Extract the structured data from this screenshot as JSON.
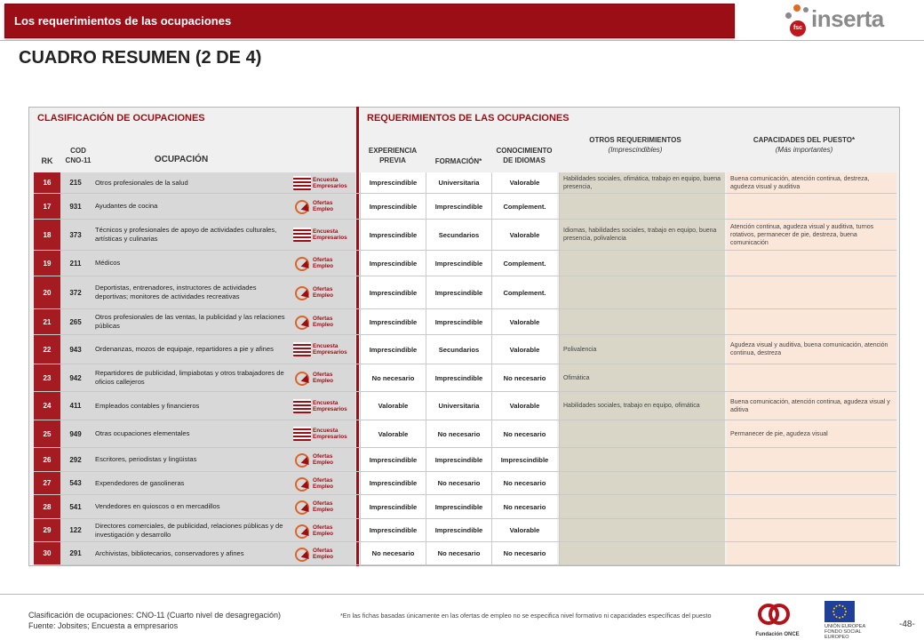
{
  "header": {
    "banner_title": "Los requerimientos de las ocupaciones",
    "logo_text": "inserta",
    "logo_badge": "fsc",
    "accent_color": "#9b0e15"
  },
  "page_title": "CUADRO RESUMEN (2 DE 4)",
  "sections": {
    "left": "CLASIFICACIÓN DE OCUPACIONES",
    "right": "REQUERIMIENTOS DE LAS OCUPACIONES"
  },
  "columns": {
    "rk": "RK",
    "cod": "COD CNO-11",
    "ocupacion": "OCUPACIÓN",
    "experiencia": "EXPERIENCIA PREVIA",
    "formacion": "FORMACIÓN*",
    "idiomas": "CONOCIMIENTO DE IDIOMAS",
    "otros_title": "OTROS REQUERIMIENTOS",
    "otros_sub": "(Imprescindibles)",
    "capacidades_title": "CAPACIDADES DEL PUESTO*",
    "capacidades_sub": "(Más importantes)"
  },
  "source_labels": {
    "encuesta_1": "Encuesta",
    "encuesta_2": "Empresarios",
    "ofertas_1": "Ofertas",
    "ofertas_2": "Empleo"
  },
  "rows": [
    {
      "rk": "16",
      "cod": "215",
      "ocupacion": "Otros profesionales de la salud",
      "source": "encuesta",
      "experiencia": "Imprescindible",
      "formacion": "Universitaria",
      "idiomas": "Valorable",
      "otros": "Habilidades sociales, ofimática, trabajo en equipo, buena presencia,",
      "capacidades": "Buena comunicación, atención continua, destreza, agudeza visual y auditiva"
    },
    {
      "rk": "17",
      "cod": "931",
      "ocupacion": "Ayudantes de cocina",
      "source": "ofertas",
      "experiencia": "Imprescindible",
      "formacion": "Imprescindible",
      "idiomas": "Complement.",
      "otros": "",
      "capacidades": ""
    },
    {
      "rk": "18",
      "cod": "373",
      "ocupacion": "Técnicos y profesionales de apoyo de actividades culturales, artísticas y culinarias",
      "source": "encuesta",
      "experiencia": "Imprescindible",
      "formacion": "Secundarios",
      "idiomas": "Valorable",
      "otros": "Idiomas, habilidades sociales, trabajo en equipo, buena presencia, polivalencia",
      "capacidades": "Atención continua, agudeza visual y auditiva, turnos rotativos, permanecer de pie, destreza, buena comunicación"
    },
    {
      "rk": "19",
      "cod": "211",
      "ocupacion": "Médicos",
      "source": "ofertas",
      "experiencia": "Imprescindible",
      "formacion": "Imprescindible",
      "idiomas": "Complement.",
      "otros": "",
      "capacidades": ""
    },
    {
      "rk": "20",
      "cod": "372",
      "ocupacion": "Deportistas, entrenadores, instructores de actividades deportivas; monitores de actividades recreativas",
      "source": "ofertas",
      "experiencia": "Imprescindible",
      "formacion": "Imprescindible",
      "idiomas": "Complement.",
      "otros": "",
      "capacidades": ""
    },
    {
      "rk": "21",
      "cod": "265",
      "ocupacion": "Otros profesionales de las ventas, la publicidad y las relaciones públicas",
      "source": "ofertas",
      "experiencia": "Imprescindible",
      "formacion": "Imprescindible",
      "idiomas": "Valorable",
      "otros": "",
      "capacidades": ""
    },
    {
      "rk": "22",
      "cod": "943",
      "ocupacion": "Ordenanzas, mozos de equipaje, repartidores a pie y afines",
      "source": "encuesta",
      "experiencia": "Imprescindible",
      "formacion": "Secundarios",
      "idiomas": "Valorable",
      "otros": "Polivalencia",
      "capacidades": "Agudeza visual y auditiva, buena comunicación, atención continua, destreza"
    },
    {
      "rk": "23",
      "cod": "942",
      "ocupacion": "Repartidores de publicidad, limpiabotas y otros trabajadores de oficios callejeros",
      "source": "ofertas",
      "experiencia": "No necesario",
      "formacion": "Imprescindible",
      "idiomas": "No necesario",
      "otros": "Ofimática",
      "capacidades": ""
    },
    {
      "rk": "24",
      "cod": "411",
      "ocupacion": "Empleados contables y financieros",
      "source": "encuesta",
      "experiencia": "Valorable",
      "formacion": "Universitaria",
      "idiomas": "Valorable",
      "otros": "Habilidades sociales, trabajo en equipo, ofimática",
      "capacidades": "Buena comunicación, atención continua, agudeza visual y aditiva"
    },
    {
      "rk": "25",
      "cod": "949",
      "ocupacion": "Otras ocupaciones elementales",
      "source": "encuesta",
      "experiencia": "Valorable",
      "formacion": "No necesario",
      "idiomas": "No necesario",
      "otros": "",
      "capacidades": "Permanecer de pie, agudeza visual"
    },
    {
      "rk": "26",
      "cod": "292",
      "ocupacion": "Escritores, periodistas y lingüistas",
      "source": "ofertas",
      "experiencia": "Imprescindible",
      "formacion": "Imprescindible",
      "idiomas": "Imprescindible",
      "otros": "",
      "capacidades": ""
    },
    {
      "rk": "27",
      "cod": "543",
      "ocupacion": "Expendedores de gasolineras",
      "source": "ofertas",
      "experiencia": "Imprescindible",
      "formacion": "No necesario",
      "idiomas": "No necesario",
      "otros": "",
      "capacidades": ""
    },
    {
      "rk": "28",
      "cod": "541",
      "ocupacion": "Vendedores en quioscos o en mercadillos",
      "source": "ofertas",
      "experiencia": "Imprescindible",
      "formacion": "Imprescindible",
      "idiomas": "No necesario",
      "otros": "",
      "capacidades": ""
    },
    {
      "rk": "29",
      "cod": "122",
      "ocupacion": "Directores comerciales, de publicidad, relaciones públicas y de investigación y desarrollo",
      "source": "ofertas",
      "experiencia": "Imprescindible",
      "formacion": "Imprescindible",
      "idiomas": "Valorable",
      "otros": "",
      "capacidades": ""
    },
    {
      "rk": "30",
      "cod": "291",
      "ocupacion": "Archivistas, bibliotecarios, conservadores y afines",
      "source": "ofertas",
      "experiencia": "No necesario",
      "formacion": "No necesario",
      "idiomas": "No necesario",
      "otros": "",
      "capacidades": ""
    }
  ],
  "footer": {
    "classification": "Clasificación de ocupaciones: CNO-11 (Cuarto nivel de desagregación)",
    "source": "Fuente: Jobsites; Encuesta a empresarios",
    "note": "*En las fichas basadas únicamente en las ofertas de empleo no se especifica nivel formativo ni capacidades específicas del puesto",
    "once_label": "Fundación ONCE",
    "ue_label_1": "UNIÓN EUROPEA",
    "ue_label_2": "FONDO SOCIAL EUROPEO",
    "page_number": "-48-"
  }
}
